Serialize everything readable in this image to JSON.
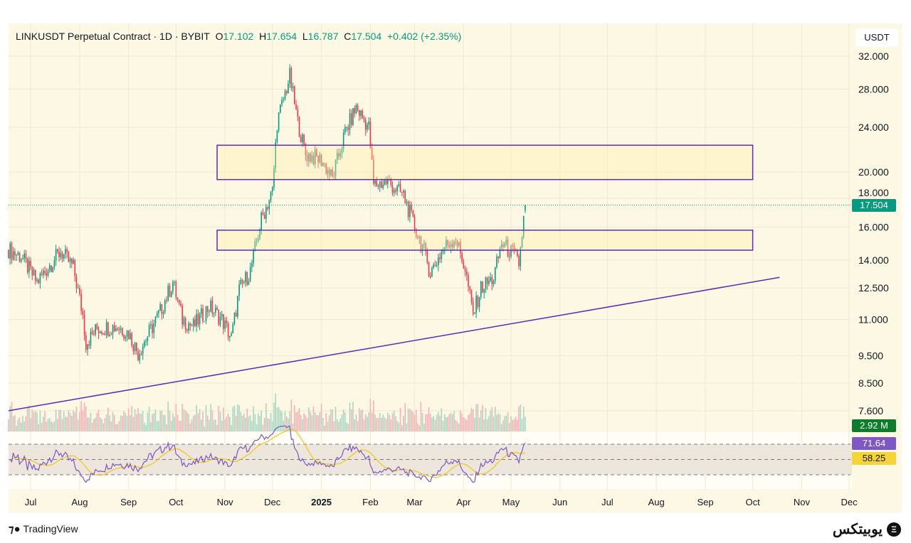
{
  "header": {
    "symbol": "LINKUSDT Perpetual Contract · 1D · BYBIT",
    "open_label": "O",
    "open": "17.102",
    "high_label": "H",
    "high": "17.654",
    "low_label": "L",
    "low": "16.787",
    "close_label": "C",
    "close": "17.504",
    "change": "+0.402 (+2.35%)"
  },
  "currency": "USDT",
  "price_tag": "17.504",
  "volume_tag": "2.92 M",
  "rsi_tag": "71.64",
  "rsi_ma_tag": "58.25",
  "branding": {
    "tradingview": "TradingView",
    "logo_text": "یوبیتکس"
  },
  "colors": {
    "bg": "#fdf8e4",
    "up": "#089981",
    "down": "#f23645",
    "drawing": "#5b2bb5",
    "rsi": "#7e57c2",
    "rsi_ma": "#f5c518"
  },
  "chart_data": {
    "type": "candlestick",
    "y_scale": "log",
    "ylim": [
      7.6,
      33
    ],
    "y_ticks": [
      "32.000",
      "28.000",
      "24.000",
      "20.000",
      "18.000",
      "16.000",
      "14.000",
      "12.500",
      "11.000",
      "9.500",
      "8.500",
      "7.600"
    ],
    "x_ticks": [
      {
        "label": "Jul",
        "date": "2024-07-01"
      },
      {
        "label": "Aug",
        "date": "2024-08-01"
      },
      {
        "label": "Sep",
        "date": "2024-09-01"
      },
      {
        "label": "Oct",
        "date": "2024-10-01"
      },
      {
        "label": "Nov",
        "date": "2024-11-01"
      },
      {
        "label": "Dec",
        "date": "2024-12-01"
      },
      {
        "label": "2025",
        "date": "2025-01-01"
      },
      {
        "label": "Feb",
        "date": "2025-02-01"
      },
      {
        "label": "Mar",
        "date": "2025-03-01"
      },
      {
        "label": "Apr",
        "date": "2025-04-01"
      },
      {
        "label": "May",
        "date": "2025-05-01"
      },
      {
        "label": "Jun",
        "date": "2025-06-01"
      },
      {
        "label": "Jul",
        "date": "2025-07-01"
      },
      {
        "label": "Aug",
        "date": "2025-08-01"
      },
      {
        "label": "Sep",
        "date": "2025-09-01"
      },
      {
        "label": "Oct",
        "date": "2025-10-01"
      },
      {
        "label": "Nov",
        "date": "2025-11-01"
      },
      {
        "label": "Dec",
        "date": "2025-12-01"
      }
    ],
    "price_anchors": [
      [
        "2024-06-17",
        14.6
      ],
      [
        "2024-06-25",
        14.2
      ],
      [
        "2024-07-05",
        12.8
      ],
      [
        "2024-07-12",
        13.6
      ],
      [
        "2024-07-20",
        14.5
      ],
      [
        "2024-07-28",
        13.6
      ],
      [
        "2024-08-03",
        11.2
      ],
      [
        "2024-08-05",
        10.0
      ],
      [
        "2024-08-12",
        10.6
      ],
      [
        "2024-08-25",
        10.7
      ],
      [
        "2024-09-01",
        10.4
      ],
      [
        "2024-09-07",
        9.6
      ],
      [
        "2024-09-20",
        11.2
      ],
      [
        "2024-09-29",
        12.8
      ],
      [
        "2024-10-05",
        11.0
      ],
      [
        "2024-10-12",
        10.7
      ],
      [
        "2024-10-22",
        11.6
      ],
      [
        "2024-10-30",
        11.0
      ],
      [
        "2024-11-05",
        10.2
      ],
      [
        "2024-11-10",
        12.4
      ],
      [
        "2024-11-17",
        13.4
      ],
      [
        "2024-11-24",
        16.5
      ],
      [
        "2024-12-01",
        18.5
      ],
      [
        "2024-12-04",
        24.5
      ],
      [
        "2024-12-12",
        29.5
      ],
      [
        "2024-12-17",
        24.5
      ],
      [
        "2024-12-22",
        21.5
      ],
      [
        "2025-01-01",
        21.0
      ],
      [
        "2025-01-08",
        19.5
      ],
      [
        "2025-01-16",
        23.5
      ],
      [
        "2025-01-23",
        26.0
      ],
      [
        "2025-01-31",
        24.0
      ],
      [
        "2025-02-03",
        19.0
      ],
      [
        "2025-02-12",
        19.2
      ],
      [
        "2025-02-22",
        18.2
      ],
      [
        "2025-03-01",
        16.0
      ],
      [
        "2025-03-06",
        14.8
      ],
      [
        "2025-03-11",
        13.3
      ],
      [
        "2025-03-20",
        14.8
      ],
      [
        "2025-03-27",
        15.3
      ],
      [
        "2025-04-02",
        13.5
      ],
      [
        "2025-04-07",
        11.2
      ],
      [
        "2025-04-12",
        12.5
      ],
      [
        "2025-04-20",
        13.0
      ],
      [
        "2025-04-25",
        15.0
      ],
      [
        "2025-05-02",
        14.4
      ],
      [
        "2025-05-06",
        13.8
      ],
      [
        "2025-05-10",
        17.5
      ]
    ],
    "drawings": {
      "trendline": [
        [
          "2024-06-17",
          7.6
        ],
        [
          "2025-10-18",
          13.05
        ]
      ],
      "zones": [
        {
          "from": "2024-10-27",
          "to": "2025-10-01",
          "top": 22.3,
          "bottom": 19.4
        },
        {
          "from": "2024-10-27",
          "to": "2025-10-01",
          "top": 15.8,
          "bottom": 14.57
        }
      ]
    },
    "rsi": {
      "levels": [
        70,
        50,
        30
      ],
      "last": 71.64,
      "ma_last": 58.25
    }
  }
}
